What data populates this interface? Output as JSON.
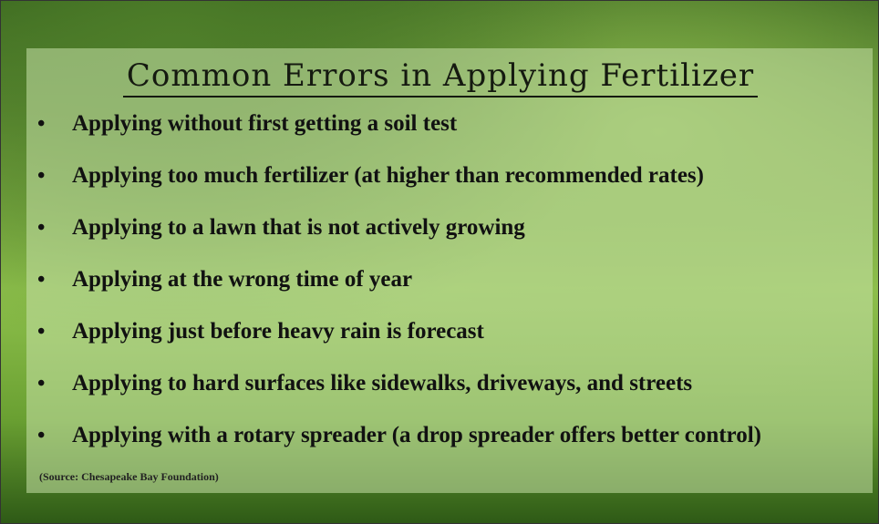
{
  "title": "Common Errors in Applying Fertilizer",
  "items": [
    "Applying without first getting a soil test",
    "Applying too much fertilizer (at higher than recommended rates)",
    "Applying to a lawn that is not actively growing",
    "Applying at the wrong time of year",
    "Applying just before heavy rain is forecast",
    "Applying to hard surfaces like sidewalks, driveways, and streets",
    "Applying with a rotary spreader (a drop spreader offers better control)"
  ],
  "source": "(Source: Chesapeake Bay Foundation)"
}
